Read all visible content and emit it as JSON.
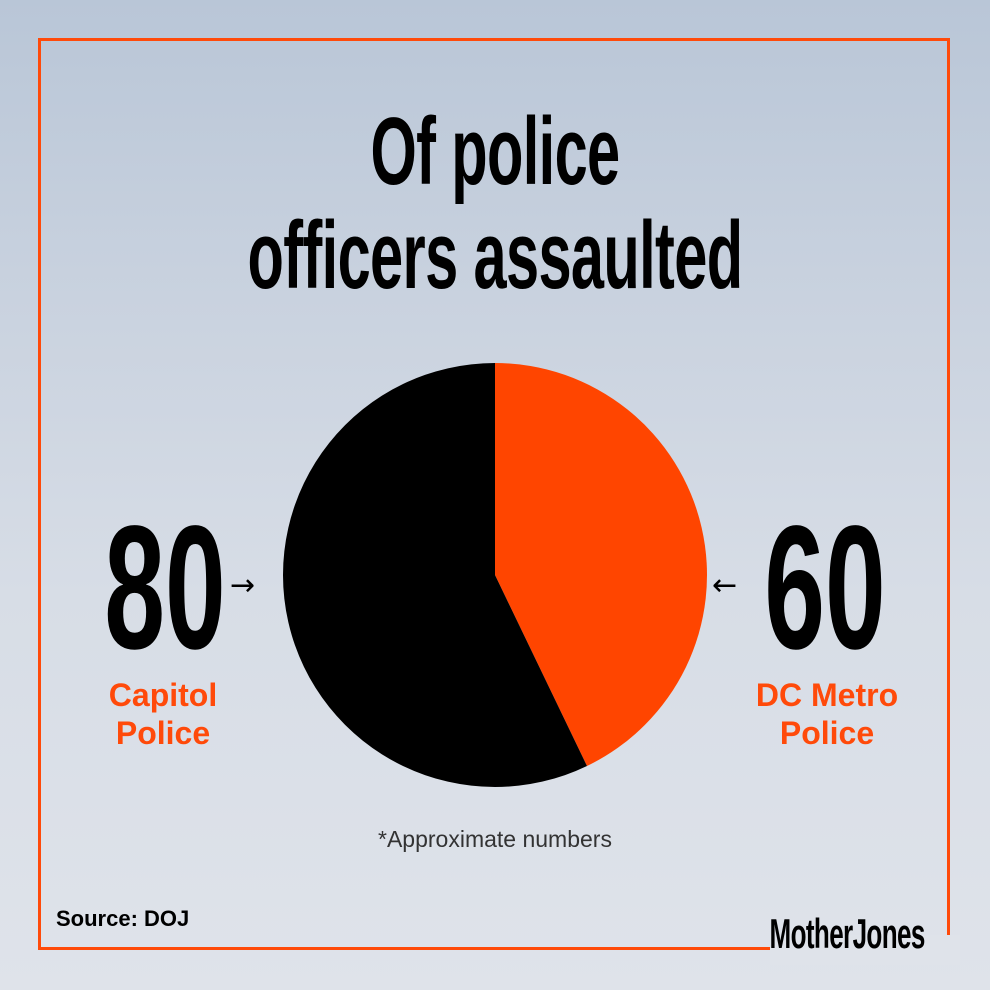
{
  "title_lines": [
    "Of police",
    "officers assaulted"
  ],
  "chart_data": {
    "type": "pie",
    "title": "Of police officers assaulted",
    "slices": [
      {
        "label": "DC Metro Police",
        "value": 60,
        "color": "#ff4500"
      },
      {
        "label": "Capitol Police",
        "value": 80,
        "color": "#000000"
      }
    ]
  },
  "labels": {
    "left_value": "80",
    "left_line1": "Capitol",
    "left_line2": "Police",
    "right_value": "60",
    "right_line1": "DC Metro",
    "right_line2": "Police",
    "left_arrow": "→",
    "right_arrow": "←"
  },
  "note": "*Approximate numbers",
  "source": "Source: DOJ",
  "logo": "MotherJones",
  "colors": {
    "accent": "#ff4a0a",
    "text": "#000000"
  }
}
